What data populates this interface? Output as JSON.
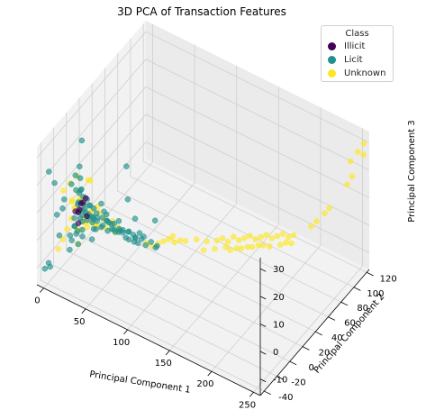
{
  "chart_data": {
    "type": "scatter",
    "projection": "3d",
    "title": "3D PCA of Transaction Features",
    "xlabel": "Principal Component 1",
    "ylabel": "Principal Component 2",
    "zlabel": "Principal Component 3",
    "xticks": [
      0,
      50,
      100,
      150,
      200,
      250
    ],
    "yticks": [
      -40,
      -20,
      0,
      20,
      40,
      60,
      80,
      100,
      120
    ],
    "zticks": [
      -10,
      0,
      10,
      20,
      30
    ],
    "xlim": [
      -8,
      258
    ],
    "ylim": [
      -46,
      124
    ],
    "zlim": [
      -16,
      34
    ],
    "grid": true,
    "legend": {
      "title": "Class",
      "placement": "top-right"
    },
    "series": [
      {
        "name": "Illicit",
        "color": "#440154",
        "points": [
          [
            5,
            -3,
            1
          ],
          [
            8,
            2,
            3
          ],
          [
            10,
            -5,
            -2
          ],
          [
            12,
            4,
            5
          ],
          [
            6,
            0,
            0
          ],
          [
            9,
            -2,
            2
          ],
          [
            14,
            3,
            -1
          ],
          [
            11,
            1,
            4
          ]
        ]
      },
      {
        "name": "Licit",
        "color": "#21918c",
        "points": [
          [
            2,
            -8,
            -12
          ],
          [
            3,
            -6,
            -9
          ],
          [
            4,
            -10,
            -6
          ],
          [
            5,
            -4,
            -4
          ],
          [
            3,
            -2,
            -2
          ],
          [
            6,
            0,
            0
          ],
          [
            4,
            2,
            2
          ],
          [
            7,
            -1,
            4
          ],
          [
            5,
            3,
            6
          ],
          [
            8,
            1,
            8
          ],
          [
            6,
            -3,
            -7
          ],
          [
            9,
            -5,
            -5
          ],
          [
            7,
            -7,
            -3
          ],
          [
            10,
            -2,
            -1
          ],
          [
            8,
            0,
            1
          ],
          [
            11,
            2,
            3
          ],
          [
            9,
            4,
            5
          ],
          [
            12,
            -1,
            2
          ],
          [
            10,
            1,
            -3
          ],
          [
            13,
            3,
            0
          ],
          [
            6,
            5,
            7
          ],
          [
            8,
            -6,
            10
          ],
          [
            7,
            2,
            12
          ],
          [
            9,
            -4,
            -10
          ],
          [
            11,
            0,
            -8
          ],
          [
            12,
            6,
            4
          ],
          [
            14,
            -3,
            1
          ],
          [
            15,
            2,
            -2
          ],
          [
            16,
            4,
            3
          ],
          [
            13,
            -5,
            6
          ],
          [
            18,
            1,
            0
          ],
          [
            20,
            -2,
            2
          ],
          [
            22,
            3,
            -1
          ],
          [
            24,
            0,
            1
          ],
          [
            17,
            -4,
            4
          ],
          [
            19,
            5,
            -3
          ],
          [
            21,
            -1,
            5
          ],
          [
            23,
            2,
            -4
          ],
          [
            25,
            -3,
            2
          ],
          [
            26,
            4,
            0
          ],
          [
            28,
            0,
            3
          ],
          [
            30,
            -2,
            1
          ],
          [
            32,
            2,
            -2
          ],
          [
            34,
            1,
            2
          ],
          [
            36,
            -1,
            0
          ],
          [
            38,
            3,
            1
          ],
          [
            27,
            -6,
            -5
          ],
          [
            29,
            6,
            5
          ],
          [
            31,
            -5,
            -1
          ],
          [
            33,
            5,
            3
          ],
          [
            40,
            0,
            2
          ],
          [
            42,
            -1,
            -1
          ],
          [
            44,
            2,
            1
          ],
          [
            46,
            0,
            0
          ],
          [
            48,
            1,
            2
          ],
          [
            50,
            -2,
            1
          ],
          [
            52,
            3,
            -1
          ],
          [
            54,
            1,
            1
          ],
          [
            45,
            -3,
            3
          ],
          [
            47,
            4,
            -2
          ],
          [
            56,
            0,
            1
          ],
          [
            58,
            2,
            0
          ],
          [
            60,
            -1,
            2
          ],
          [
            62,
            1,
            -1
          ],
          [
            64,
            3,
            1
          ],
          [
            66,
            0,
            2
          ],
          [
            68,
            -2,
            0
          ],
          [
            70,
            2,
            1
          ],
          [
            72,
            1,
            -1
          ],
          [
            74,
            0,
            1
          ],
          [
            76,
            4,
            2
          ],
          [
            78,
            -1,
            0
          ],
          [
            80,
            2,
            1
          ],
          [
            84,
            0,
            3
          ],
          [
            88,
            -2,
            1
          ],
          [
            92,
            1,
            2
          ],
          [
            96,
            3,
            0
          ],
          [
            100,
            0,
            2
          ],
          [
            -4,
            -20,
            3
          ],
          [
            -3,
            -10,
            6
          ],
          [
            -2,
            0,
            9
          ],
          [
            -5,
            -15,
            -6
          ],
          [
            -1,
            5,
            11
          ],
          [
            0,
            10,
            13
          ],
          [
            -6,
            -30,
            21
          ],
          [
            -3,
            -25,
            16
          ],
          [
            -5,
            20,
            19
          ],
          [
            -7,
            -35,
            -13
          ],
          [
            -4,
            -33,
            -11
          ],
          [
            -6,
            -28,
            -14
          ],
          [
            18,
            -40,
            14
          ],
          [
            40,
            -38,
            9
          ],
          [
            55,
            -20,
            12
          ],
          [
            62,
            -10,
            8
          ],
          [
            36,
            -15,
            10
          ],
          [
            33,
            40,
            10
          ],
          [
            46,
            25,
            4
          ],
          [
            70,
            5,
            6
          ],
          [
            90,
            10,
            7
          ],
          [
            82,
            -10,
            5
          ]
        ]
      },
      {
        "name": "Unknown",
        "color": "#fde725",
        "points": [
          [
            -3,
            -12,
            -8
          ],
          [
            -1,
            -8,
            -5
          ],
          [
            1,
            -4,
            -2
          ],
          [
            2,
            0,
            1
          ],
          [
            4,
            4,
            3
          ],
          [
            3,
            -6,
            5
          ],
          [
            5,
            2,
            7
          ],
          [
            6,
            -2,
            -6
          ],
          [
            7,
            6,
            2
          ],
          [
            8,
            -8,
            4
          ],
          [
            9,
            4,
            -4
          ],
          [
            10,
            -1,
            6
          ],
          [
            12,
            2,
            -1
          ],
          [
            14,
            -4,
            3
          ],
          [
            16,
            5,
            0
          ],
          [
            18,
            -2,
            -3
          ],
          [
            20,
            3,
            2
          ],
          [
            22,
            -5,
            1
          ],
          [
            24,
            1,
            -2
          ],
          [
            26,
            4,
            4
          ],
          [
            28,
            -3,
            0
          ],
          [
            30,
            2,
            3
          ],
          [
            32,
            -1,
            -1
          ],
          [
            35,
            3,
            1
          ],
          [
            38,
            0,
            2
          ],
          [
            41,
            -2,
            0
          ],
          [
            44,
            2,
            1
          ],
          [
            47,
            0,
            3
          ],
          [
            50,
            1,
            -1
          ],
          [
            53,
            -1,
            2
          ],
          [
            -2,
            10,
            9
          ],
          [
            0,
            -15,
            11
          ],
          [
            2,
            8,
            -9
          ],
          [
            4,
            -10,
            13
          ],
          [
            6,
            12,
            -7
          ],
          [
            8,
            -12,
            8
          ],
          [
            11,
            9,
            10
          ],
          [
            13,
            -9,
            -8
          ],
          [
            15,
            7,
            11
          ],
          [
            -4,
            -18,
            -10
          ],
          [
            120,
            18,
            2
          ],
          [
            130,
            22,
            3
          ],
          [
            140,
            25,
            3
          ],
          [
            150,
            28,
            4
          ],
          [
            155,
            30,
            5
          ],
          [
            160,
            32,
            4
          ],
          [
            165,
            34,
            6
          ],
          [
            170,
            36,
            5
          ],
          [
            175,
            38,
            6
          ],
          [
            180,
            40,
            7
          ],
          [
            185,
            42,
            6
          ],
          [
            190,
            44,
            7
          ],
          [
            195,
            46,
            8
          ],
          [
            200,
            48,
            7
          ],
          [
            205,
            50,
            8
          ],
          [
            210,
            52,
            9
          ],
          [
            215,
            54,
            8
          ],
          [
            220,
            56,
            9
          ],
          [
            138,
            23,
            0
          ],
          [
            148,
            27,
            1
          ],
          [
            158,
            31,
            2
          ],
          [
            168,
            35,
            2
          ],
          [
            178,
            39,
            3
          ],
          [
            188,
            43,
            4
          ],
          [
            198,
            47,
            4
          ],
          [
            208,
            51,
            5
          ],
          [
            213,
            53,
            6
          ],
          [
            218,
            55,
            6
          ],
          [
            162,
            33,
            1
          ],
          [
            172,
            37,
            2
          ],
          [
            182,
            41,
            3
          ],
          [
            192,
            45,
            4
          ],
          [
            90,
            5,
            -1
          ],
          [
            95,
            8,
            0
          ],
          [
            100,
            10,
            1
          ],
          [
            105,
            12,
            2
          ],
          [
            110,
            14,
            1
          ],
          [
            115,
            16,
            2
          ],
          [
            85,
            3,
            0
          ],
          [
            108,
            14,
            3
          ],
          [
            230,
            70,
            10
          ],
          [
            235,
            72,
            12
          ],
          [
            240,
            78,
            14
          ],
          [
            244,
            80,
            16
          ],
          [
            250,
            100,
            20
          ],
          [
            252,
            105,
            22
          ],
          [
            255,
            110,
            30
          ],
          [
            258,
            115,
            28
          ],
          [
            248,
            108,
            26
          ],
          [
            256,
            118,
            31
          ]
        ]
      }
    ]
  }
}
